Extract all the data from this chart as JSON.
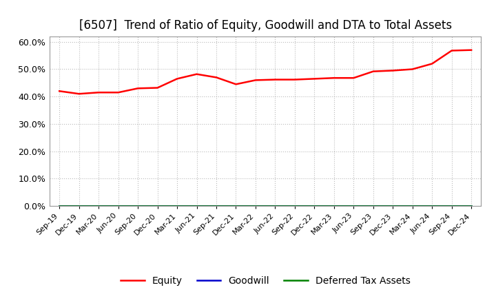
{
  "title": "[6507]  Trend of Ratio of Equity, Goodwill and DTA to Total Assets",
  "title_fontsize": 12,
  "ylim": [
    0.0,
    0.62
  ],
  "yticks": [
    0.0,
    0.1,
    0.2,
    0.3,
    0.4,
    0.5,
    0.6
  ],
  "x_labels": [
    "Sep-19",
    "Dec-19",
    "Mar-20",
    "Jun-20",
    "Sep-20",
    "Dec-20",
    "Mar-21",
    "Jun-21",
    "Sep-21",
    "Dec-21",
    "Mar-22",
    "Jun-22",
    "Sep-22",
    "Dec-22",
    "Mar-23",
    "Jun-23",
    "Sep-23",
    "Dec-23",
    "Mar-24",
    "Jun-24",
    "Sep-24",
    "Dec-24"
  ],
  "equity": [
    0.42,
    0.41,
    0.415,
    0.415,
    0.43,
    0.432,
    0.465,
    0.482,
    0.47,
    0.445,
    0.46,
    0.462,
    0.462,
    0.465,
    0.468,
    0.468,
    0.492,
    0.495,
    0.5,
    0.52,
    0.568,
    0.57
  ],
  "goodwill": [
    0.0,
    0.0,
    0.0,
    0.0,
    0.0,
    0.0,
    0.0,
    0.0,
    0.0,
    0.0,
    0.0,
    0.0,
    0.0,
    0.0,
    0.0,
    0.0,
    0.0,
    0.0,
    0.0,
    0.0,
    0.0,
    0.0
  ],
  "dta": [
    0.0,
    0.0,
    0.0,
    0.0,
    0.0,
    0.0,
    0.0,
    0.0,
    0.0,
    0.0,
    0.0,
    0.0,
    0.0,
    0.0,
    0.0,
    0.0,
    0.0,
    0.0,
    0.0,
    0.0,
    0.0,
    0.0
  ],
  "equity_color": "#ff0000",
  "goodwill_color": "#0000cc",
  "dta_color": "#008000",
  "background_color": "#ffffff",
  "grid_color": "#bbbbbb",
  "legend_labels": [
    "Equity",
    "Goodwill",
    "Deferred Tax Assets"
  ],
  "spine_color": "#999999"
}
